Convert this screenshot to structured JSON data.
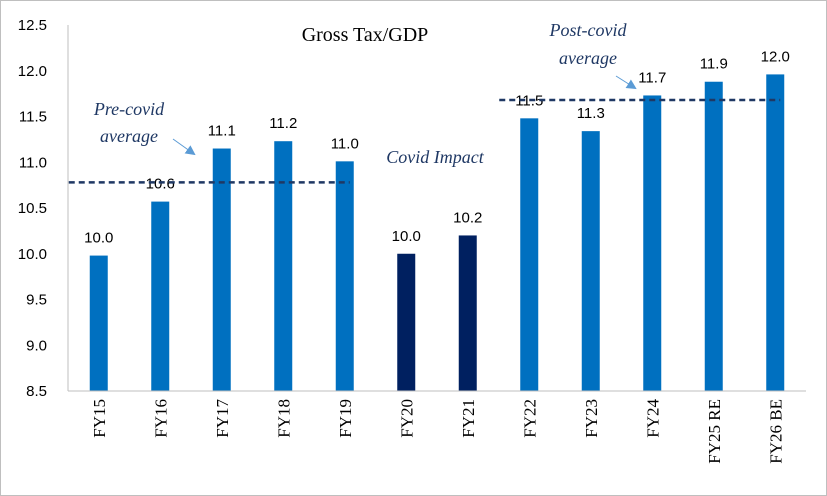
{
  "chart_data": {
    "type": "bar",
    "title": "Gross Tax/GDP",
    "xlabel": "",
    "ylabel": "",
    "ylim": [
      8.5,
      12.5
    ],
    "yticks": [
      "8.5",
      "9.0",
      "9.5",
      "10.0",
      "10.5",
      "11.0",
      "11.5",
      "12.0",
      "12.5"
    ],
    "grid": false,
    "legend": "none",
    "categories": [
      "FY15",
      "FY16",
      "FY17",
      "FY18",
      "FY19",
      "FY20",
      "FY21",
      "FY22",
      "FY23",
      "FY24",
      "FY25 RE",
      "FY26 BE"
    ],
    "values": [
      9.98,
      10.57,
      11.15,
      11.23,
      11.01,
      10.0,
      10.2,
      11.48,
      11.34,
      11.73,
      11.88,
      11.96
    ],
    "data_labels": [
      "10.0",
      "10.6",
      "11.1",
      "11.2",
      "11.0",
      "10.0",
      "10.2",
      "11.5",
      "11.3",
      "11.7",
      "11.9",
      "12.0"
    ],
    "bar_colors": [
      "#0070c0",
      "#0070c0",
      "#0070c0",
      "#0070c0",
      "#0070c0",
      "#002060",
      "#002060",
      "#0070c0",
      "#0070c0",
      "#0070c0",
      "#0070c0",
      "#0070c0"
    ],
    "reference_lines": [
      {
        "value": 10.78,
        "from": "FY15",
        "to": "FY19",
        "style": "dashed",
        "color": "#1f3864"
      },
      {
        "value": 11.68,
        "from": "FY22",
        "to": "FY26 BE",
        "style": "dashed",
        "color": "#1f3864"
      }
    ],
    "annotations": [
      {
        "lines": [
          "Pre-covid",
          "average"
        ],
        "color": "#1f3864"
      },
      {
        "lines": [
          "Covid Impact"
        ],
        "color": "#1f3864"
      },
      {
        "lines": [
          "Post-covid",
          "average"
        ],
        "color": "#1f3864"
      }
    ]
  }
}
